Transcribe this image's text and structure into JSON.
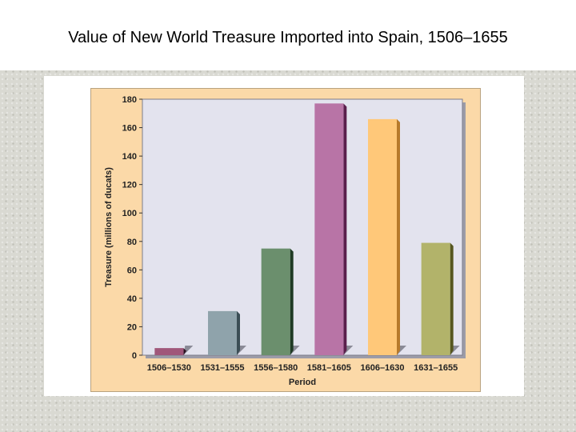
{
  "slide": {
    "title": "Value of New World Treasure Imported into Spain, 1506–1655"
  },
  "chart_data": {
    "type": "bar",
    "title": "",
    "xlabel": "Period",
    "ylabel": "Treasure (millions of ducats)",
    "ylim": [
      0,
      180
    ],
    "yticks": [
      0,
      20,
      40,
      60,
      80,
      100,
      120,
      140,
      160,
      180
    ],
    "grid": false,
    "categories": [
      "1506–1530",
      "1531–1555",
      "1556–1580",
      "1581–1605",
      "1606–1630",
      "1631–1655"
    ],
    "values": [
      5,
      31,
      75,
      177,
      166,
      79
    ],
    "colors": [
      "#a0577a",
      "#8fa3ab",
      "#6b8f6d",
      "#b874a6",
      "#ffc879",
      "#b2b36a"
    ],
    "shadow_colors": [
      "#2a1020",
      "#3b4e55",
      "#1f3a24",
      "#5a1f4c",
      "#b77a2b",
      "#55561f"
    ],
    "plot_background": "#e3e3ee",
    "panel_background": "#fbd9a8"
  }
}
